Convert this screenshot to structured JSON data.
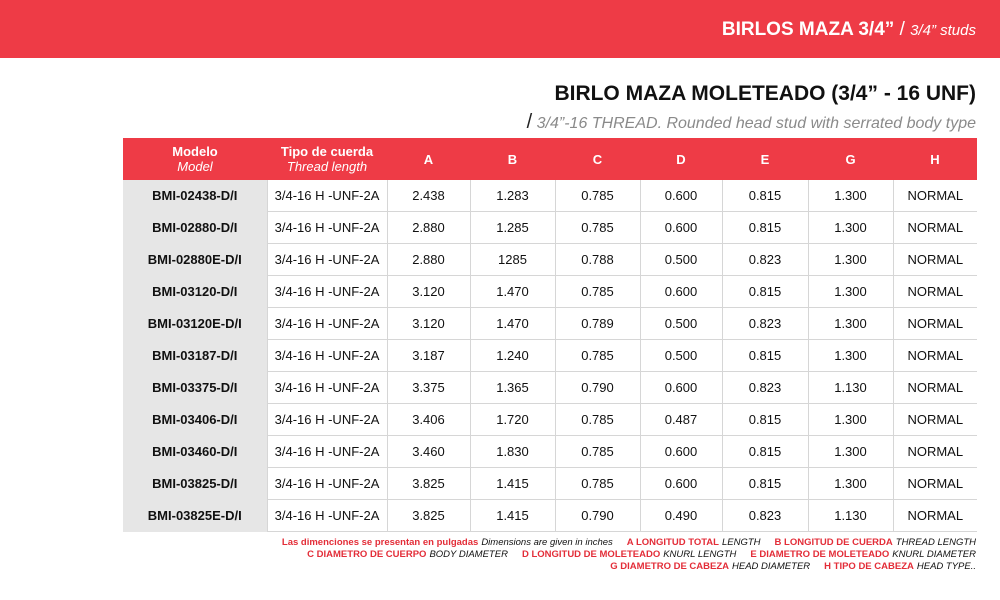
{
  "header": {
    "title": "BIRLOS MAZA 3/4”",
    "separator": "/",
    "subtitle": "3/4” studs"
  },
  "product": {
    "title": "BIRLO MAZA MOLETEADO (3/4” - 16 UNF)",
    "separator": "/",
    "subtitle": "3/4”-16 THREAD. Rounded head stud with serrated body type"
  },
  "table": {
    "columns": [
      {
        "label": "Modelo",
        "sub": "Model"
      },
      {
        "label": "Tipo de cuerda",
        "sub": "Thread length"
      },
      {
        "label": "A"
      },
      {
        "label": "B"
      },
      {
        "label": "C"
      },
      {
        "label": "D"
      },
      {
        "label": "E"
      },
      {
        "label": "G"
      },
      {
        "label": "H"
      }
    ],
    "rows": [
      [
        "BMI-02438-D/I",
        "3/4-16 H -UNF-2A",
        "2.438",
        "1.283",
        "0.785",
        "0.600",
        "0.815",
        "1.300",
        "NORMAL"
      ],
      [
        "BMI-02880-D/I",
        "3/4-16 H -UNF-2A",
        "2.880",
        "1.285",
        "0.785",
        "0.600",
        "0.815",
        "1.300",
        "NORMAL"
      ],
      [
        "BMI-02880E-D/I",
        "3/4-16 H -UNF-2A",
        "2.880",
        "1285",
        "0.788",
        "0.500",
        "0.823",
        "1.300",
        "NORMAL"
      ],
      [
        "BMI-03120-D/I",
        "3/4-16 H -UNF-2A",
        "3.120",
        "1.470",
        "0.785",
        "0.600",
        "0.815",
        "1.300",
        "NORMAL"
      ],
      [
        "BMI-03120E-D/I",
        "3/4-16 H -UNF-2A",
        "3.120",
        "1.470",
        "0.789",
        "0.500",
        "0.823",
        "1.300",
        "NORMAL"
      ],
      [
        "BMI-03187-D/I",
        "3/4-16 H -UNF-2A",
        "3.187",
        "1.240",
        "0.785",
        "0.500",
        "0.815",
        "1.300",
        "NORMAL"
      ],
      [
        "BMI-03375-D/I",
        "3/4-16 H -UNF-2A",
        "3.375",
        "1.365",
        "0.790",
        "0.600",
        "0.823",
        "1.130",
        "NORMAL"
      ],
      [
        "BMI-03406-D/I",
        "3/4-16 H -UNF-2A",
        "3.406",
        "1.720",
        "0.785",
        "0.487",
        "0.815",
        "1.300",
        "NORMAL"
      ],
      [
        "BMI-03460-D/I",
        "3/4-16 H -UNF-2A",
        "3.460",
        "1.830",
        "0.785",
        "0.600",
        "0.815",
        "1.300",
        "NORMAL"
      ],
      [
        "BMI-03825-D/I",
        "3/4-16 H -UNF-2A",
        "3.825",
        "1.415",
        "0.785",
        "0.600",
        "0.815",
        "1.300",
        "NORMAL"
      ],
      [
        "BMI-03825E-D/I",
        "3/4-16 H -UNF-2A",
        "3.825",
        "1.415",
        "0.790",
        "0.490",
        "0.823",
        "1.130",
        "NORMAL"
      ]
    ]
  },
  "notes": [
    [
      "Las dimenciones se presentan en pulgadas",
      "Dimensions are given in inches",
      "A   LONGITUD TOTAL",
      "LENGTH",
      "B   LONGITUD DE CUERDA",
      "THREAD LENGTH"
    ],
    [
      "C   DIAMETRO DE CUERPO",
      "BODY DIAMETER",
      "D  LONGITUD DE MOLETEADO",
      "KNURL LENGTH",
      "E   DIAMETRO DE MOLETEADO",
      "KNURL DIAMETER"
    ],
    [
      "G   DIAMETRO DE CABEZA",
      "HEAD DIAMETER",
      "H   TIPO DE CABEZA",
      "HEAD TYPE.."
    ]
  ]
}
